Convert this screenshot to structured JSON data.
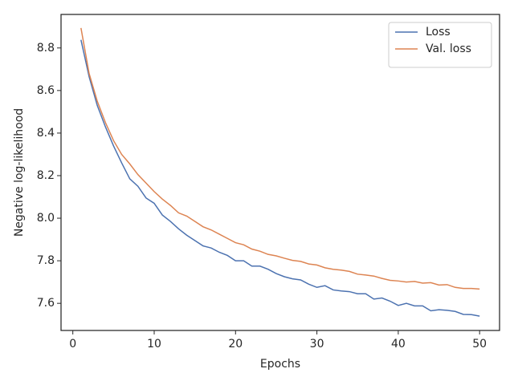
{
  "chart_data": {
    "type": "line",
    "x_label": "Epochs",
    "y_label": "Negative log-likelihood",
    "x": [
      1,
      2,
      3,
      4,
      5,
      6,
      7,
      8,
      9,
      10,
      11,
      12,
      13,
      14,
      15,
      16,
      17,
      18,
      19,
      20,
      21,
      22,
      23,
      24,
      25,
      26,
      27,
      28,
      29,
      30,
      31,
      32,
      33,
      34,
      35,
      36,
      37,
      38,
      39,
      40,
      41,
      42,
      43,
      44,
      45,
      46,
      47,
      48,
      49,
      50
    ],
    "series": [
      {
        "name": "Loss",
        "color": "#4c72b0",
        "values": [
          8.838,
          8.665,
          8.53,
          8.43,
          8.34,
          8.26,
          8.185,
          8.15,
          8.095,
          8.07,
          8.015,
          7.985,
          7.95,
          7.92,
          7.895,
          7.87,
          7.86,
          7.84,
          7.825,
          7.8,
          7.8,
          7.775,
          7.775,
          7.76,
          7.74,
          7.725,
          7.715,
          7.71,
          7.69,
          7.675,
          7.683,
          7.663,
          7.658,
          7.655,
          7.645,
          7.645,
          7.62,
          7.625,
          7.61,
          7.59,
          7.6,
          7.588,
          7.588,
          7.565,
          7.57,
          7.567,
          7.562,
          7.548,
          7.547,
          7.54
        ]
      },
      {
        "name": "Val. loss",
        "color": "#dd8452",
        "values": [
          8.894,
          8.68,
          8.55,
          8.45,
          8.365,
          8.3,
          8.255,
          8.205,
          8.165,
          8.125,
          8.09,
          8.06,
          8.025,
          8.01,
          7.985,
          7.96,
          7.945,
          7.925,
          7.905,
          7.885,
          7.875,
          7.855,
          7.845,
          7.83,
          7.823,
          7.812,
          7.802,
          7.797,
          7.785,
          7.78,
          7.767,
          7.76,
          7.756,
          7.75,
          7.737,
          7.733,
          7.728,
          7.717,
          7.708,
          7.705,
          7.7,
          7.703,
          7.695,
          7.697,
          7.686,
          7.688,
          7.675,
          7.67,
          7.67,
          7.667
        ]
      }
    ],
    "xlim": [
      -1.45,
      52.45
    ],
    "xticks": [
      0,
      10,
      20,
      30,
      40,
      50
    ],
    "ylim": [
      7.4725,
      8.9575
    ],
    "yticks": [
      7.6,
      7.8,
      {
        "value": 8,
        "label": "8.0"
      },
      8.2,
      8.4,
      8.6,
      8.8
    ],
    "legend": "upper right"
  }
}
